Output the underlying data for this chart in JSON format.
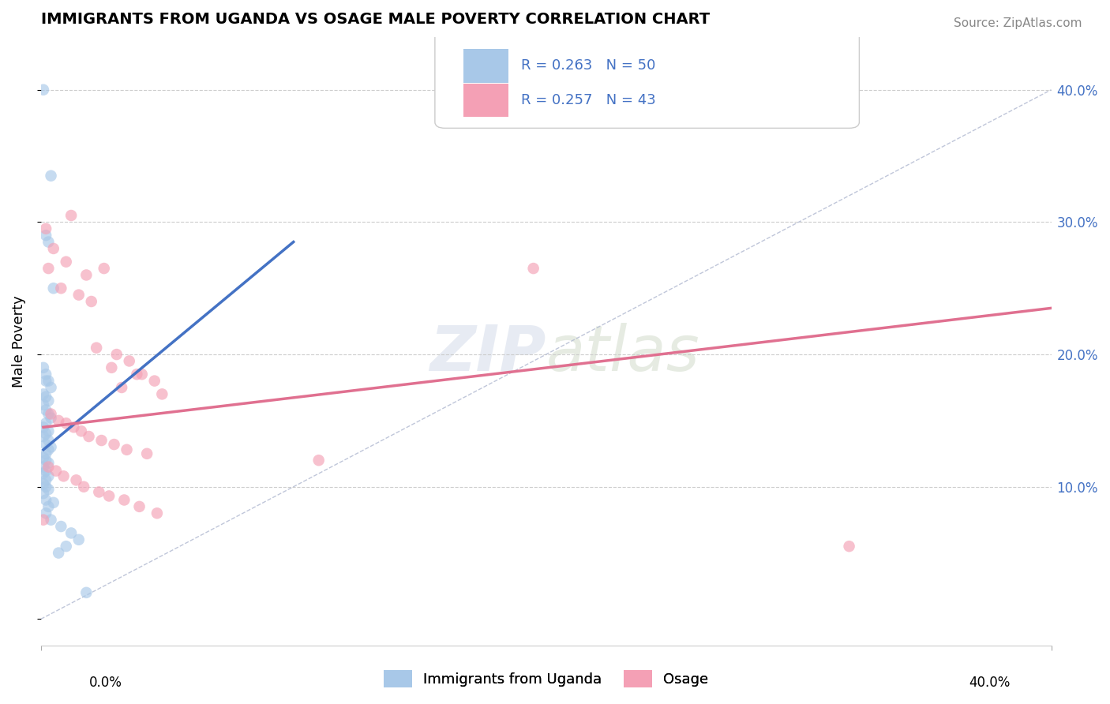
{
  "title": "IMMIGRANTS FROM UGANDA VS OSAGE MALE POVERTY CORRELATION CHART",
  "source": "Source: ZipAtlas.com",
  "ylabel": "Male Poverty",
  "watermark": "ZIPatlas",
  "legend_r1": "R = 0.263",
  "legend_n1": "N = 50",
  "legend_r2": "R = 0.257",
  "legend_n2": "N = 43",
  "xlim": [
    0.0,
    0.4
  ],
  "ylim": [
    -0.02,
    0.44
  ],
  "yticks": [
    0.1,
    0.2,
    0.3,
    0.4
  ],
  "ytick_labels": [
    "10.0%",
    "20.0%",
    "30.0%",
    "40.0%"
  ],
  "color_blue": "#a8c8e8",
  "color_pink": "#f4a0b5",
  "line_blue": "#4472c4",
  "line_pink": "#e07090",
  "diag_color": "#b0b8d0",
  "uganda_x": [
    0.001,
    0.004,
    0.002,
    0.005,
    0.003,
    0.001,
    0.002,
    0.003,
    0.002,
    0.004,
    0.001,
    0.002,
    0.003,
    0.001,
    0.002,
    0.003,
    0.004,
    0.002,
    0.001,
    0.003,
    0.002,
    0.001,
    0.003,
    0.002,
    0.004,
    0.003,
    0.002,
    0.001,
    0.002,
    0.003,
    0.001,
    0.002,
    0.001,
    0.003,
    0.002,
    0.001,
    0.002,
    0.003,
    0.001,
    0.002,
    0.005,
    0.003,
    0.002,
    0.004,
    0.008,
    0.012,
    0.015,
    0.01,
    0.007,
    0.018
  ],
  "uganda_y": [
    0.4,
    0.335,
    0.29,
    0.25,
    0.285,
    0.19,
    0.185,
    0.18,
    0.18,
    0.175,
    0.17,
    0.168,
    0.165,
    0.162,
    0.158,
    0.155,
    0.152,
    0.148,
    0.145,
    0.142,
    0.14,
    0.138,
    0.135,
    0.132,
    0.13,
    0.128,
    0.125,
    0.122,
    0.12,
    0.118,
    0.115,
    0.112,
    0.11,
    0.108,
    0.105,
    0.102,
    0.1,
    0.098,
    0.095,
    0.09,
    0.088,
    0.085,
    0.08,
    0.075,
    0.07,
    0.065,
    0.06,
    0.055,
    0.05,
    0.02
  ],
  "osage_x": [
    0.002,
    0.005,
    0.003,
    0.008,
    0.012,
    0.015,
    0.01,
    0.018,
    0.02,
    0.025,
    0.022,
    0.03,
    0.035,
    0.028,
    0.04,
    0.045,
    0.038,
    0.032,
    0.048,
    0.195,
    0.004,
    0.007,
    0.01,
    0.013,
    0.016,
    0.019,
    0.024,
    0.029,
    0.034,
    0.042,
    0.003,
    0.006,
    0.009,
    0.014,
    0.017,
    0.023,
    0.027,
    0.033,
    0.039,
    0.046,
    0.001,
    0.11,
    0.32
  ],
  "osage_y": [
    0.295,
    0.28,
    0.265,
    0.25,
    0.305,
    0.245,
    0.27,
    0.26,
    0.24,
    0.265,
    0.205,
    0.2,
    0.195,
    0.19,
    0.185,
    0.18,
    0.185,
    0.175,
    0.17,
    0.265,
    0.155,
    0.15,
    0.148,
    0.145,
    0.142,
    0.138,
    0.135,
    0.132,
    0.128,
    0.125,
    0.115,
    0.112,
    0.108,
    0.105,
    0.1,
    0.096,
    0.093,
    0.09,
    0.085,
    0.08,
    0.075,
    0.12,
    0.055
  ],
  "blue_line_x": [
    0.001,
    0.1
  ],
  "blue_line_y": [
    0.128,
    0.285
  ],
  "pink_line_x": [
    0.001,
    0.4
  ],
  "pink_line_y": [
    0.145,
    0.235
  ]
}
